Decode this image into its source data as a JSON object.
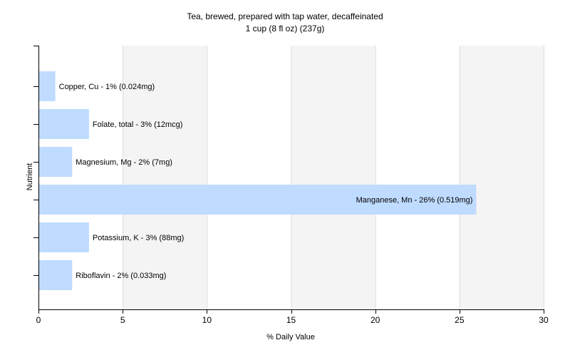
{
  "chart_data": {
    "type": "bar",
    "orientation": "horizontal",
    "title": "Tea, brewed, prepared with tap water, decaffeinated",
    "subtitle": "1 cup (8 fl oz) (237g)",
    "xlabel": "% Daily Value",
    "ylabel": "Nutrient",
    "xlim": [
      0,
      30
    ],
    "xticks": [
      "0",
      "5",
      "10",
      "15",
      "20",
      "25",
      "30"
    ],
    "grid": true,
    "categories": [
      "Copper, Cu",
      "Folate, total",
      "Magnesium, Mg",
      "Manganese, Mn",
      "Potassium, K",
      "Riboflavin"
    ],
    "values": [
      1,
      3,
      2,
      26,
      3,
      2
    ],
    "data_labels": [
      "Copper, Cu - 1% (0.024mg)",
      "Folate, total - 3% (12mcg)",
      "Magnesium, Mg - 2% (7mg)",
      "Manganese, Mn - 26% (0.519mg)",
      "Potassium, K - 3% (88mg)",
      "Riboflavin - 2% (0.033mg)"
    ],
    "colors": {
      "bar": "#bfdbff",
      "plot_bg_a": "#f4f4f4",
      "plot_bg_b": "#ffffff",
      "grid": "#dddddd",
      "axis": "#000000"
    }
  }
}
